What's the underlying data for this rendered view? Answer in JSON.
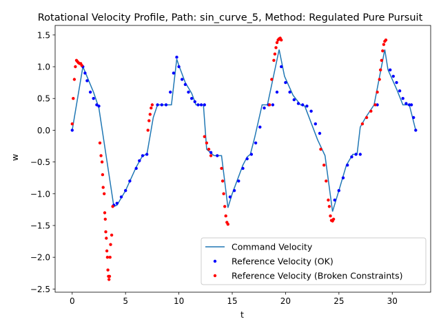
{
  "chart_data": {
    "type": "line",
    "title": "Rotational Velocity Profile, Path: sin_curve_5, Method: Regulated Pure Pursuit",
    "xlabel": "t",
    "ylabel": "w",
    "xlim": [
      -1.6,
      33.6
    ],
    "ylim": [
      -2.55,
      1.65
    ],
    "xticks": [
      0,
      5,
      10,
      15,
      20,
      25,
      30
    ],
    "xtick_labels": [
      "0",
      "5",
      "10",
      "15",
      "20",
      "25",
      "30"
    ],
    "yticks": [
      -2.5,
      -2.0,
      -1.5,
      -1.0,
      -0.5,
      0.0,
      0.5,
      1.0,
      1.5
    ],
    "ytick_labels": [
      "−2.5",
      "−2.0",
      "−1.5",
      "−1.0",
      "−0.5",
      "0.0",
      "0.5",
      "1.0",
      "1.5"
    ],
    "grid": false,
    "legend_position": "lower-right",
    "series": [
      {
        "name": "Command Velocity",
        "kind": "line",
        "color": "#1f77b4",
        "x": [
          0.0,
          1.0,
          2.0,
          2.5,
          3.9,
          4.2,
          5.0,
          6.0,
          6.6,
          7.0,
          7.6,
          8.0,
          9.3,
          9.8,
          10.0,
          10.6,
          11.2,
          11.6,
          12.3,
          12.6,
          13.3,
          14.0,
          14.6,
          15.0,
          16.0,
          16.4,
          16.7,
          17.1,
          17.8,
          18.3,
          19.4,
          19.9,
          20.7,
          21.4,
          21.8,
          23.0,
          23.7,
          24.4,
          25.0,
          25.7,
          26.3,
          26.7,
          27.0,
          27.5,
          28.3,
          29.3,
          29.6,
          30.4,
          31.0,
          31.6,
          32.2
        ],
        "y": [
          0.0,
          1.0,
          0.6,
          0.35,
          -1.2,
          -1.18,
          -0.95,
          -0.58,
          -0.4,
          -0.38,
          0.2,
          0.4,
          0.4,
          1.12,
          1.02,
          0.75,
          0.58,
          0.4,
          0.4,
          -0.3,
          -0.4,
          -0.4,
          -1.22,
          -1.0,
          -0.55,
          -0.42,
          -0.38,
          -0.12,
          0.4,
          0.4,
          1.27,
          0.85,
          0.55,
          0.4,
          0.38,
          -0.15,
          -0.4,
          -1.28,
          -0.95,
          -0.55,
          -0.38,
          -0.38,
          0.05,
          0.2,
          0.4,
          1.27,
          0.95,
          0.65,
          0.4,
          0.4,
          0.0
        ]
      },
      {
        "name": "Reference Velocity (OK)",
        "kind": "scatter",
        "color": "#0000ff",
        "x": [
          0.0,
          1.0,
          1.2,
          1.4,
          1.7,
          2.0,
          2.3,
          2.5,
          3.9,
          4.2,
          4.6,
          5.0,
          5.4,
          6.0,
          6.3,
          6.6,
          7.0,
          8.0,
          8.4,
          8.8,
          9.2,
          9.5,
          9.8,
          10.0,
          10.3,
          10.6,
          10.9,
          11.2,
          11.5,
          11.8,
          12.1,
          12.4,
          13.0,
          13.6,
          14.8,
          15.2,
          15.6,
          16.0,
          16.4,
          16.8,
          17.2,
          17.6,
          18.0,
          18.4,
          18.8,
          19.2,
          19.6,
          20.0,
          20.4,
          20.8,
          21.2,
          21.6,
          22.0,
          22.4,
          22.8,
          23.2,
          24.6,
          25.0,
          25.4,
          25.8,
          26.2,
          26.6,
          27.0,
          28.6,
          29.8,
          30.1,
          30.4,
          30.7,
          31.0,
          31.3,
          31.6,
          31.8,
          32.0,
          32.2
        ],
        "y": [
          0.0,
          1.0,
          0.9,
          0.78,
          0.6,
          0.5,
          0.4,
          0.38,
          -1.18,
          -1.15,
          -1.05,
          -0.95,
          -0.8,
          -0.6,
          -0.48,
          -0.4,
          -0.38,
          0.4,
          0.4,
          0.4,
          0.6,
          0.9,
          1.15,
          1.0,
          0.8,
          0.72,
          0.6,
          0.5,
          0.45,
          0.4,
          0.4,
          0.4,
          -0.35,
          -0.4,
          -1.05,
          -0.95,
          -0.8,
          -0.6,
          -0.45,
          -0.38,
          -0.2,
          0.05,
          0.35,
          0.4,
          0.4,
          0.6,
          1.0,
          0.75,
          0.6,
          0.48,
          0.42,
          0.4,
          0.38,
          0.3,
          0.1,
          -0.05,
          -1.1,
          -0.95,
          -0.75,
          -0.55,
          -0.42,
          -0.38,
          -0.38,
          0.4,
          0.95,
          0.85,
          0.75,
          0.62,
          0.5,
          0.42,
          0.4,
          0.4,
          0.2,
          0.0
        ]
      },
      {
        "name": "Reference Velocity (Broken Constraints)",
        "kind": "scatter",
        "color": "#ff0000",
        "x": [
          0.0,
          0.1,
          0.2,
          0.3,
          0.4,
          0.5,
          0.6,
          0.7,
          0.8,
          0.9,
          2.6,
          2.7,
          2.8,
          2.85,
          2.9,
          3.0,
          3.05,
          3.1,
          3.15,
          3.2,
          3.25,
          3.3,
          3.35,
          3.4,
          3.45,
          3.5,
          3.55,
          3.6,
          3.7,
          3.8,
          7.1,
          7.2,
          7.3,
          7.4,
          7.5,
          12.4,
          12.6,
          12.8,
          13.0,
          14.0,
          14.1,
          14.2,
          14.3,
          14.4,
          14.5,
          14.6,
          18.5,
          18.7,
          18.9,
          19.0,
          19.1,
          19.2,
          19.3,
          19.4,
          19.5,
          19.6,
          23.3,
          23.6,
          23.8,
          24.0,
          24.1,
          24.2,
          24.3,
          24.4,
          24.5,
          27.2,
          27.6,
          28.0,
          28.4,
          28.6,
          28.8,
          28.9,
          29.0,
          29.1,
          29.2,
          29.3,
          29.4
        ],
        "y": [
          0.1,
          0.5,
          0.8,
          1.0,
          1.1,
          1.08,
          1.06,
          1.05,
          1.05,
          1.02,
          -0.2,
          -0.4,
          -0.5,
          -0.7,
          -0.9,
          -1.0,
          -1.3,
          -1.4,
          -1.6,
          -1.7,
          -1.9,
          -2.0,
          -2.2,
          -2.3,
          -2.35,
          -2.3,
          -2.0,
          -1.8,
          -1.65,
          -1.2,
          0.0,
          0.15,
          0.25,
          0.35,
          0.4,
          -0.1,
          -0.2,
          -0.3,
          -0.4,
          -0.6,
          -0.8,
          -1.0,
          -1.2,
          -1.35,
          -1.45,
          -1.48,
          0.4,
          0.8,
          1.1,
          1.2,
          1.3,
          1.38,
          1.42,
          1.44,
          1.45,
          1.42,
          -0.3,
          -0.55,
          -0.8,
          -1.1,
          -1.2,
          -1.35,
          -1.42,
          -1.43,
          -1.4,
          0.1,
          0.2,
          0.3,
          0.4,
          0.6,
          0.8,
          0.95,
          1.1,
          1.25,
          1.35,
          1.4,
          1.42
        ]
      }
    ]
  }
}
